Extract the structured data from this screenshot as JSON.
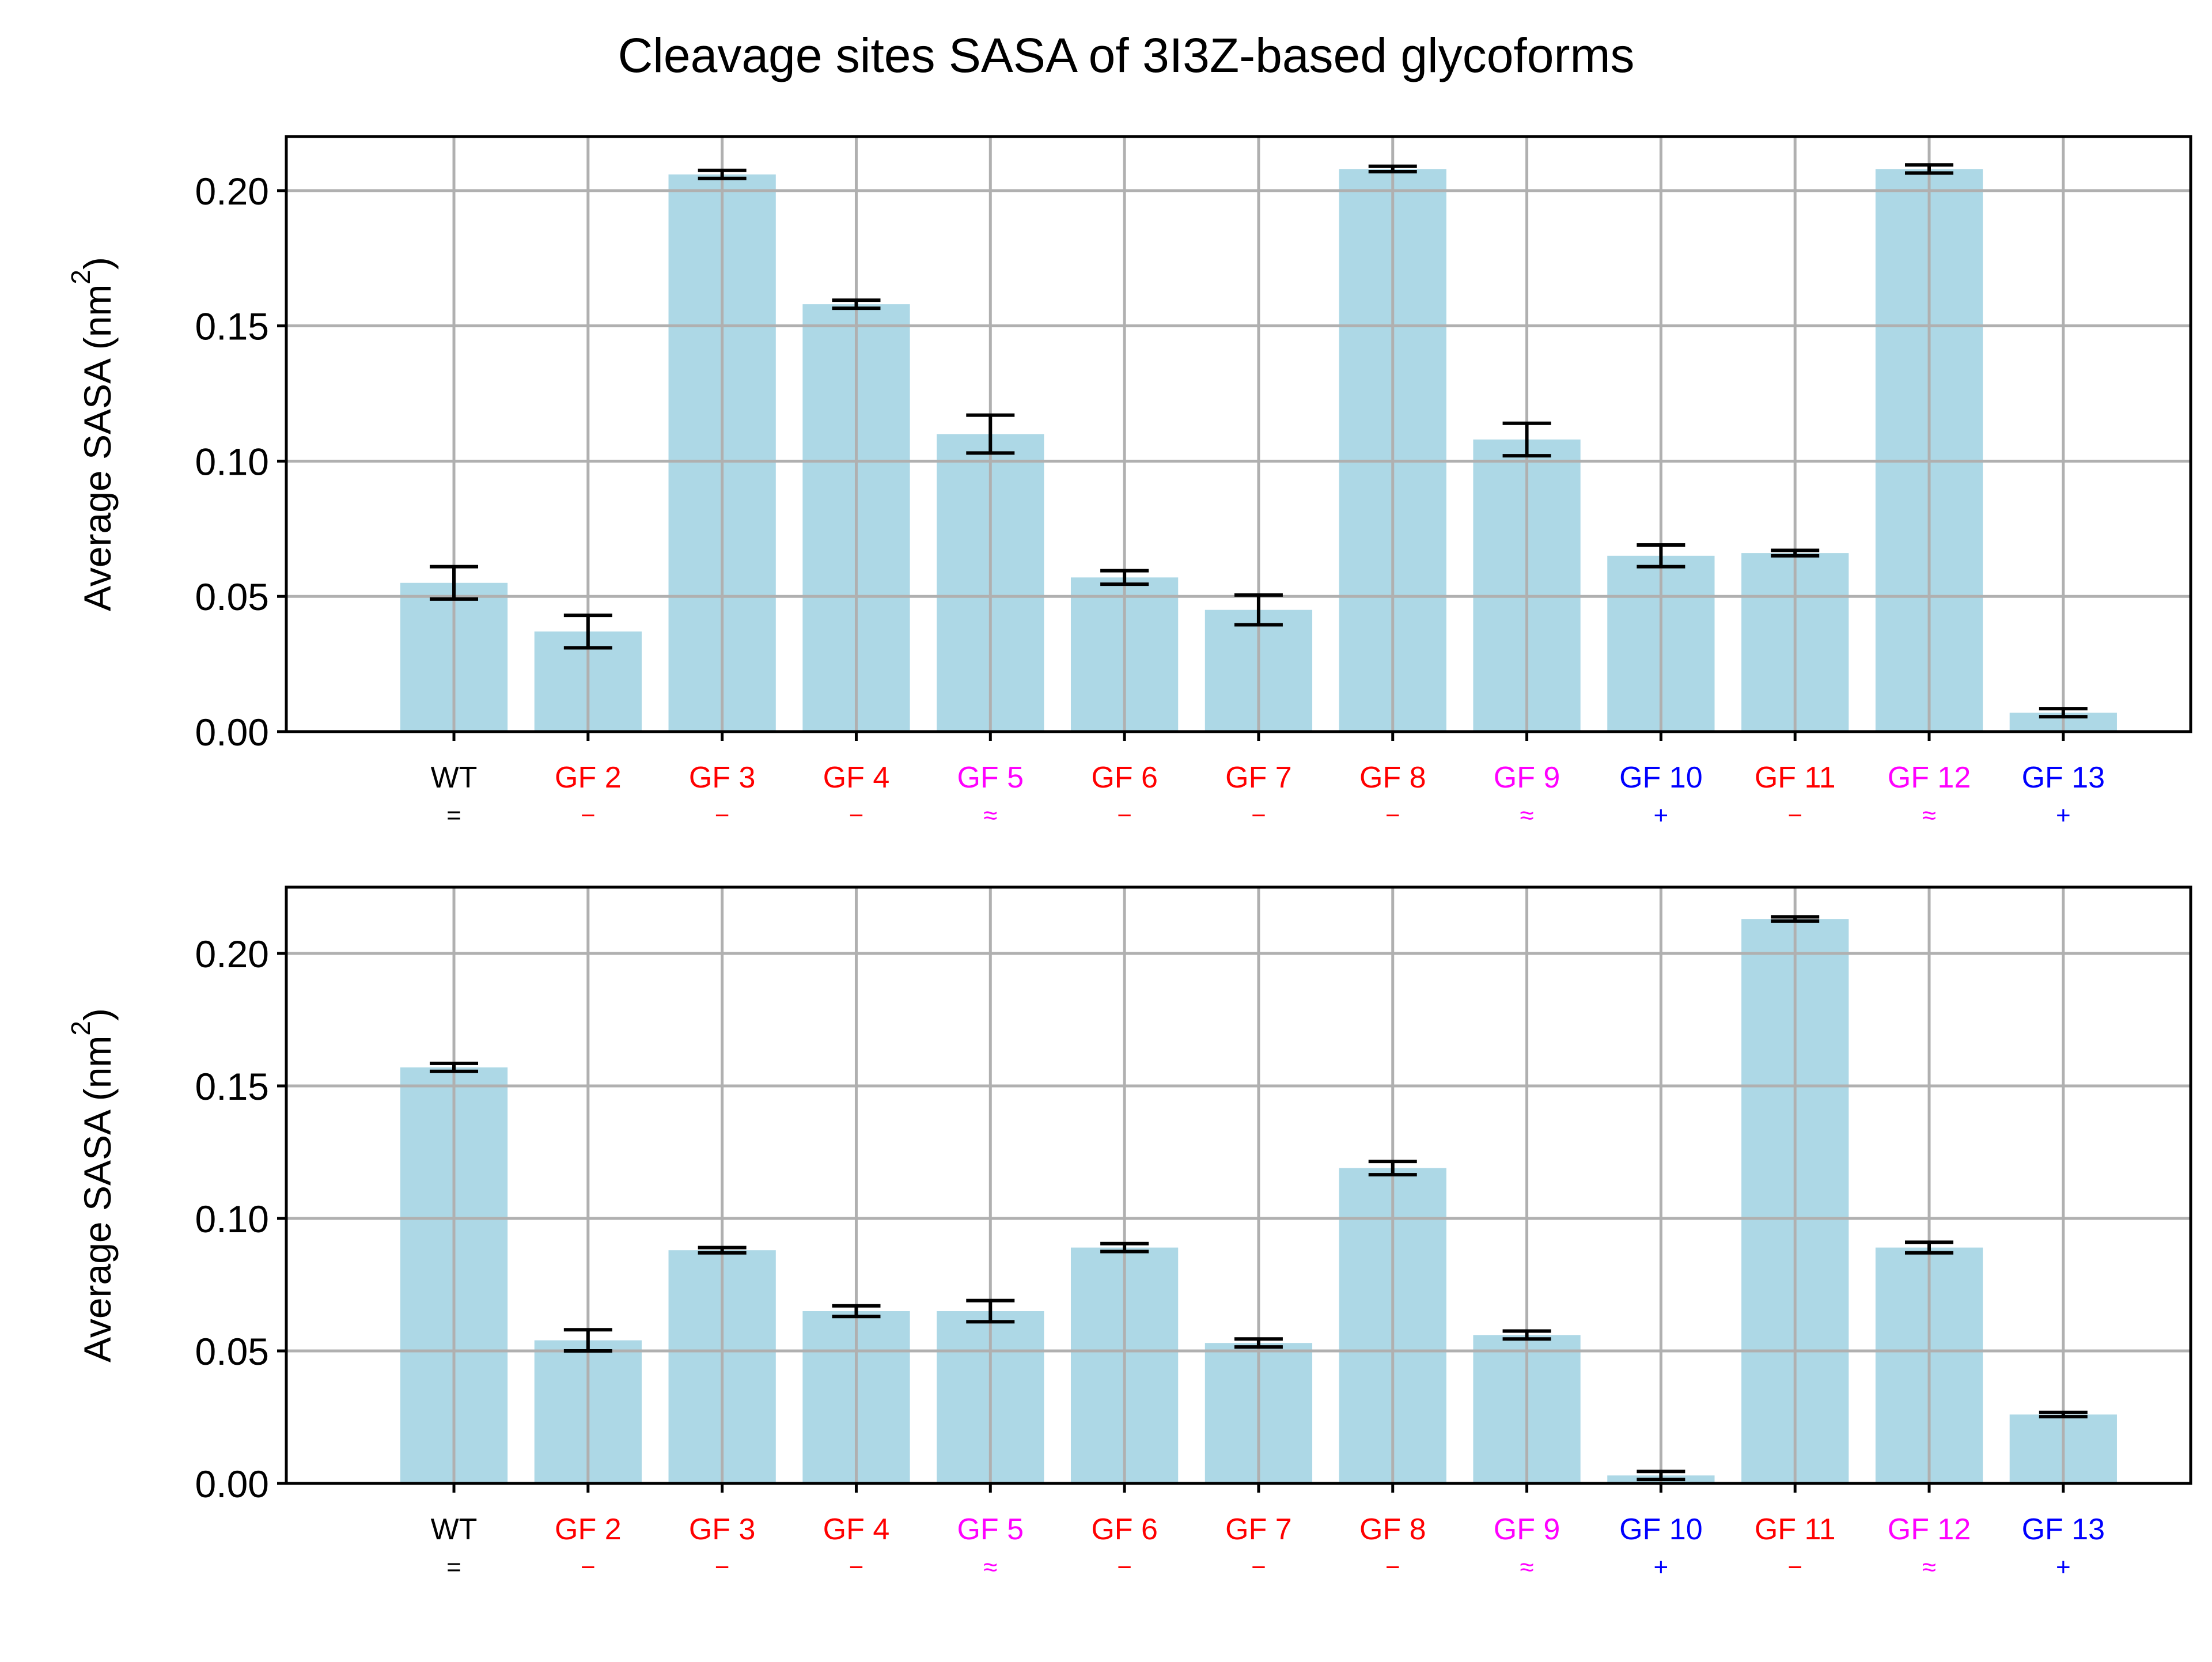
{
  "figure": {
    "title": "Cleavage sites SASA of 3I3Z-based glycoforms"
  },
  "colors": {
    "bar": "#add8e6",
    "errorbar": "#000000",
    "grid": "#b0b0b0",
    "axis": "#000000",
    "neutral": "#000000",
    "decrease": "#ff0000",
    "similar": "#ff00ff",
    "increase": "#0000ff"
  },
  "chart_data": [
    {
      "type": "bar",
      "title": "",
      "xlabel": "",
      "ylabel": "Average SASA (nm",
      "ylabel_sup": "2",
      "ylabel_close": ")",
      "ylim": [
        0,
        0.22
      ],
      "yticks": [
        0.0,
        0.05,
        0.1,
        0.15,
        0.2
      ],
      "ytick_labels": [
        "0.00",
        "0.05",
        "0.10",
        "0.15",
        "0.20"
      ],
      "grid": true,
      "categories": [
        "WT",
        "GF 2",
        "GF 3",
        "GF 4",
        "GF 5",
        "GF 6",
        "GF 7",
        "GF 8",
        "GF 9",
        "GF 10",
        "GF 11",
        "GF 12",
        "GF 13"
      ],
      "markers": [
        "=",
        "−",
        "−",
        "−",
        "≈",
        "−",
        "−",
        "−",
        "≈",
        "+",
        "−",
        "≈",
        "+"
      ],
      "marker_colors": [
        "neutral",
        "decrease",
        "decrease",
        "decrease",
        "similar",
        "decrease",
        "decrease",
        "decrease",
        "similar",
        "increase",
        "decrease",
        "similar",
        "increase"
      ],
      "values": [
        0.055,
        0.037,
        0.206,
        0.158,
        0.11,
        0.057,
        0.045,
        0.208,
        0.108,
        0.065,
        0.066,
        0.208,
        0.007
      ],
      "errors": [
        0.006,
        0.006,
        0.0015,
        0.0015,
        0.007,
        0.0025,
        0.0055,
        0.001,
        0.006,
        0.004,
        0.001,
        0.0015,
        0.0015
      ]
    },
    {
      "type": "bar",
      "title": "",
      "xlabel": "",
      "ylabel": "Average SASA (nm",
      "ylabel_sup": "2",
      "ylabel_close": ")",
      "ylim": [
        0,
        0.225
      ],
      "yticks": [
        0.0,
        0.05,
        0.1,
        0.15,
        0.2
      ],
      "ytick_labels": [
        "0.00",
        "0.05",
        "0.10",
        "0.15",
        "0.20"
      ],
      "grid": true,
      "categories": [
        "WT",
        "GF 2",
        "GF 3",
        "GF 4",
        "GF 5",
        "GF 6",
        "GF 7",
        "GF 8",
        "GF 9",
        "GF 10",
        "GF 11",
        "GF 12",
        "GF 13"
      ],
      "markers": [
        "=",
        "−",
        "−",
        "−",
        "≈",
        "−",
        "−",
        "−",
        "≈",
        "+",
        "−",
        "≈",
        "+"
      ],
      "marker_colors": [
        "neutral",
        "decrease",
        "decrease",
        "decrease",
        "similar",
        "decrease",
        "decrease",
        "decrease",
        "similar",
        "increase",
        "decrease",
        "similar",
        "increase"
      ],
      "values": [
        0.157,
        0.054,
        0.088,
        0.065,
        0.065,
        0.089,
        0.053,
        0.119,
        0.056,
        0.003,
        0.213,
        0.089,
        0.026
      ],
      "errors": [
        0.0015,
        0.004,
        0.001,
        0.002,
        0.004,
        0.0015,
        0.0015,
        0.0025,
        0.0015,
        0.0015,
        0.0008,
        0.002,
        0.0008
      ]
    }
  ]
}
